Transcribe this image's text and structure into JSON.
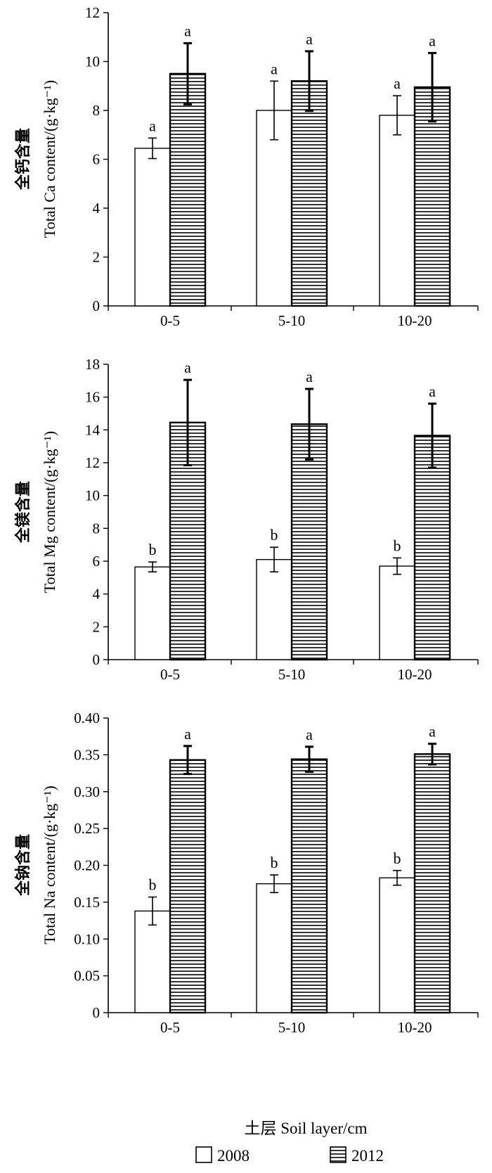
{
  "figure": {
    "xlabel": "土层 Soil layer/cm",
    "legend": [
      {
        "label": "2008",
        "pattern": "open"
      },
      {
        "label": "2012",
        "pattern": "horizontal-hatch"
      }
    ],
    "colors": {
      "ink": "#000000",
      "background": "#ffffff"
    }
  },
  "chart_data": [
    {
      "type": "bar",
      "ylabel_cn": "全钙含量",
      "ylabel_en": "Total Ca content/(g·kg⁻¹)",
      "categories": [
        "0-5",
        "5-10",
        "10-20"
      ],
      "ylim": [
        0,
        12
      ],
      "yticks": [
        0,
        2,
        4,
        6,
        8,
        10,
        12
      ],
      "ytick_labels": [
        "0",
        "2",
        "4",
        "6",
        "8",
        "10",
        "12"
      ],
      "series": [
        {
          "name": "2008",
          "values": [
            6.45,
            8.0,
            7.8
          ],
          "errors": [
            0.42,
            1.2,
            0.8
          ],
          "letters": [
            "a",
            "a",
            "a"
          ]
        },
        {
          "name": "2012",
          "values": [
            9.5,
            9.2,
            8.95
          ],
          "errors": [
            1.25,
            1.22,
            1.4
          ],
          "letters": [
            "a",
            "a",
            "a"
          ]
        }
      ]
    },
    {
      "type": "bar",
      "ylabel_cn": "全镁含量",
      "ylabel_en": "Total Mg content/(g·kg⁻¹)",
      "categories": [
        "0-5",
        "5-10",
        "10-20"
      ],
      "ylim": [
        0,
        18
      ],
      "yticks": [
        0,
        2,
        4,
        6,
        8,
        10,
        12,
        14,
        16,
        18
      ],
      "ytick_labels": [
        "0",
        "2",
        "4",
        "6",
        "8",
        "10",
        "12",
        "14",
        "16",
        "18"
      ],
      "series": [
        {
          "name": "2008",
          "values": [
            5.65,
            6.1,
            5.7
          ],
          "errors": [
            0.3,
            0.75,
            0.5
          ],
          "letters": [
            "b",
            "b",
            "b"
          ]
        },
        {
          "name": "2012",
          "values": [
            14.45,
            14.35,
            13.65
          ],
          "errors": [
            2.6,
            2.15,
            1.95
          ],
          "letters": [
            "a",
            "a",
            "a"
          ]
        }
      ]
    },
    {
      "type": "bar",
      "ylabel_cn": "全钠含量",
      "ylabel_en": "Total Na content/(g·kg⁻¹)",
      "categories": [
        "0-5",
        "5-10",
        "10-20"
      ],
      "ylim": [
        0,
        0.4
      ],
      "yticks": [
        0,
        0.05,
        0.1,
        0.15,
        0.2,
        0.25,
        0.3,
        0.35,
        0.4
      ],
      "ytick_labels": [
        "0",
        "0.05",
        "0.10",
        "0.15",
        "0.20",
        "0.25",
        "0.30",
        "0.35",
        "0.40"
      ],
      "series": [
        {
          "name": "2008",
          "values": [
            0.138,
            0.175,
            0.183
          ],
          "errors": [
            0.019,
            0.012,
            0.01
          ],
          "letters": [
            "b",
            "b",
            "b"
          ]
        },
        {
          "name": "2012",
          "values": [
            0.343,
            0.344,
            0.351
          ],
          "errors": [
            0.019,
            0.017,
            0.014
          ],
          "letters": [
            "a",
            "a",
            "a"
          ]
        }
      ]
    }
  ]
}
